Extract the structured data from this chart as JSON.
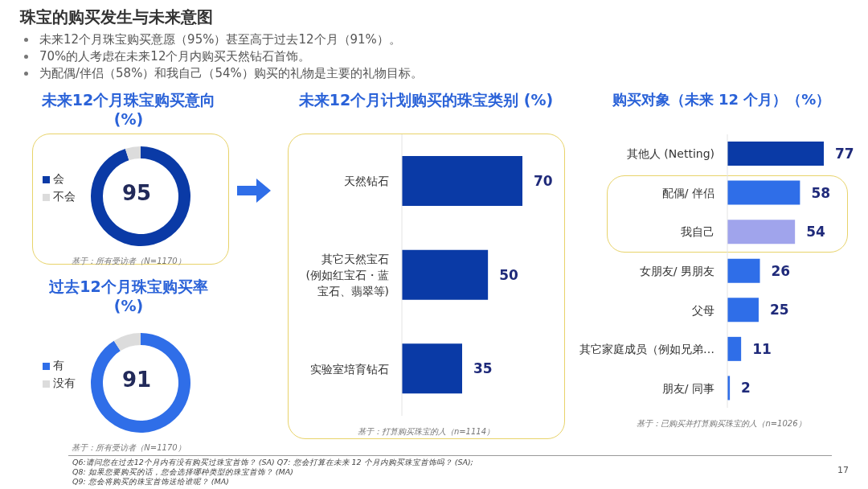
{
  "chart_data": [
    {
      "type": "other",
      "title": "珠宝的购买发生与未来意图",
      "annotations": [
        "未来12个月珠宝购买意愿（95%）甚至高于过去12个月（91%）。",
        "70%的人考虑在未来12个月内购买天然钻石首饰。",
        "为配偶/伴侣（58%）和我自己（54%）购买的礼物是主要的礼物目标。"
      ]
    },
    {
      "type": "donut",
      "title": "未来12个月珠宝购买意向 (%)",
      "categories": [
        "会",
        "不会"
      ],
      "values": [
        95,
        5
      ],
      "colors": [
        "#0a3aa6",
        "#dcdcdc"
      ],
      "value_labels": [
        "95",
        null
      ],
      "legend": "left",
      "annotations": [
        "基于：所有受访者（N=1170）"
      ]
    },
    {
      "type": "donut",
      "title": "过去12个月珠宝购买率 (%)",
      "categories": [
        "有",
        "没有"
      ],
      "values": [
        91,
        9
      ],
      "colors": [
        "#2f6ee8",
        "#dcdcdc"
      ],
      "value_labels": [
        "91",
        null
      ],
      "legend": "left",
      "annotations": [
        "基于：所有受访者（N=1170）"
      ]
    },
    {
      "type": "bar",
      "orientation": "horizontal",
      "title": "未来12个月计划购买的珠宝类别 (%)",
      "categories": [
        "天然钻石",
        "其它天然宝石\n(例如红宝石・蓝宝石、翡翠等)",
        "实验室培育钻石"
      ],
      "values": [
        70,
        50,
        35
      ],
      "color": "#0a3aa6",
      "data_labels": true,
      "annotations": [
        "基于：打算购买珠宝的人（n=1114）"
      ]
    },
    {
      "type": "bar",
      "orientation": "horizontal",
      "title": "购买对象（未来 12 个月）（%）",
      "categories": [
        "其他人 (Netting)",
        "配偶/ 伴侣",
        "我自己",
        "女朋友/ 男朋友",
        "父母",
        "其它家庭成员（例如兄弟…",
        "朋友/ 同事"
      ],
      "values": [
        77,
        58,
        54,
        26,
        25,
        11,
        2
      ],
      "colors": [
        "#0a3aa6",
        "#2f6ee8",
        "#a0a4ec",
        "#2f6ee8",
        "#2f6ee8",
        "#2f6ee8",
        "#2f6ee8"
      ],
      "data_labels": true,
      "annotations": [
        "基于：已购买并打算购买珠宝的人（n=1026）"
      ]
    },
    {
      "type": "other",
      "annotations": [
        "Q6:请问您在过去12个月内有没有购买过珠宝首饰？ (SA) Q7: 您会打算在未来 12 个月内购买珠宝首饰吗？ (SA);",
        "Q8: 如果您要购买的话，您会选择哪种类型的珠宝首饰？ (MA)",
        "Q9: 您会将购买的珠宝首饰送给谁呢？ (MA)",
        "17"
      ]
    }
  ]
}
